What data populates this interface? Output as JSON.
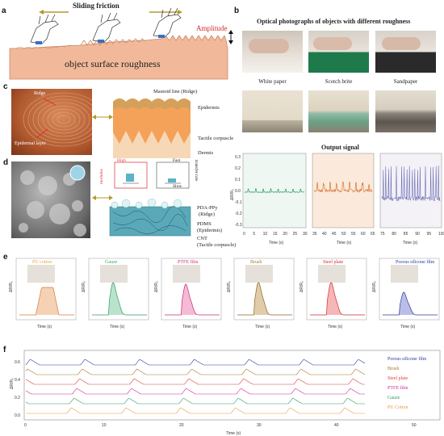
{
  "panel_a": {
    "letter": "a",
    "title": "Sliding friction",
    "amplitude_label": "Amplitude",
    "surface_label": "object surface roughness"
  },
  "panel_b": {
    "letter": "b",
    "title": "Optical photographs of objects with different roughness",
    "objects": [
      "White paper",
      "Scotch brite",
      "Sandpaper"
    ],
    "output_title": "Output signal",
    "ylabel": "ΔR/R₀",
    "xlabel": "Time (s)",
    "plot1_ticks_x": [
      "0",
      "5",
      "10",
      "15",
      "20",
      "25",
      "30"
    ],
    "plot2_ticks_x": [
      "35",
      "40",
      "45",
      "50",
      "55",
      "60",
      "65"
    ],
    "plot3_ticks_x": [
      "75",
      "80",
      "85",
      "90",
      "95",
      "100"
    ],
    "y_ticks": [
      "0.3",
      "0.2",
      "0.1",
      "0.0",
      "-0.1",
      "-0.2",
      "-0.3"
    ]
  },
  "panel_c": {
    "letter": "c",
    "ridge": "Ridge",
    "epidermal": "Epidermal layer",
    "mastoid": "Mastoid line (Ridge)",
    "epidermis": "Epidermis",
    "tactile": "Tactile corpuscle",
    "dermis": "Dermis"
  },
  "panel_d": {
    "letter": "d",
    "high": "High",
    "low": "Low",
    "fast": "Fast",
    "slow": "Slow",
    "modulus": "modulus",
    "transfer": "transfer rate",
    "pda": "PDA-PPy",
    "pda_sub": "(Ridge)",
    "pdms": "PDMS",
    "pdms_sub": "(Epidermis)",
    "cnt": "CNT",
    "cnt_sub": "(Tactile corpuscle)"
  },
  "panel_e": {
    "letter": "e",
    "xlabel": "Time (s)",
    "ylabel": "ΔR/R₀",
    "materials": [
      {
        "name": "PU cotton",
        "color": "#e8a33d",
        "fill": "#f3c7a0",
        "line": "#d9783a"
      },
      {
        "name": "Gauze",
        "color": "#3aa06a",
        "fill": "#a7dcc0",
        "line": "#2e9a64"
      },
      {
        "name": "PTFE film",
        "color": "#d0307a",
        "fill": "#f3a9cb",
        "line": "#c72a72"
      },
      {
        "name": "Brush",
        "color": "#a07a2e",
        "fill": "#d8bf94",
        "line": "#8a6426"
      },
      {
        "name": "Steel plate",
        "color": "#d72a30",
        "fill": "#f2a4a6",
        "line": "#d52a30"
      },
      {
        "name": "Porous silicone film",
        "color": "#2a3aa0",
        "fill": "#a9aee0",
        "line": "#2c3aa0"
      }
    ]
  },
  "panel_f": {
    "letter": "f",
    "xlabel": "Time (s)",
    "ylabel": "ΔR/R₀",
    "x_ticks": [
      "0",
      "10",
      "20",
      "30",
      "40",
      "50"
    ],
    "y_ticks": [
      "0.0",
      "0.2",
      "0.4",
      "0.6"
    ],
    "series": [
      {
        "name": "Porous silicone film",
        "color": "#2c3aa0"
      },
      {
        "name": "Brush",
        "color": "#a5772e"
      },
      {
        "name": "Steel plate",
        "color": "#e03a3a"
      },
      {
        "name": "PTFE film",
        "color": "#cc2a90"
      },
      {
        "name": "Gauze",
        "color": "#2e9a64"
      },
      {
        "name": "PU Cotton",
        "color": "#e8983a"
      }
    ]
  }
}
